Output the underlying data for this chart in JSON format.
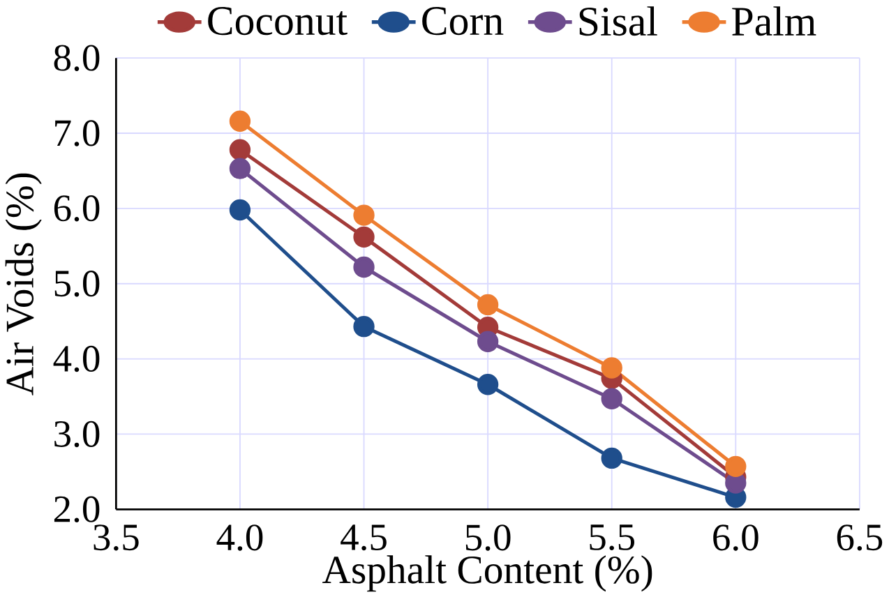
{
  "chart_data": {
    "type": "line",
    "xlabel": "Asphalt Content (%)",
    "ylabel": "Air Voids (%)",
    "x": [
      4.0,
      4.5,
      5.0,
      5.5,
      6.0
    ],
    "series": [
      {
        "name": "Coconut",
        "color": "#a33b39",
        "values": [
          6.78,
          5.62,
          4.42,
          3.74,
          2.43
        ]
      },
      {
        "name": "Corn",
        "color": "#1f4e8c",
        "values": [
          5.98,
          4.43,
          3.66,
          2.68,
          2.16
        ]
      },
      {
        "name": "Sisal",
        "color": "#6e4c8e",
        "values": [
          6.53,
          5.22,
          4.23,
          3.47,
          2.35
        ]
      },
      {
        "name": "Palm",
        "color": "#ed7d31",
        "values": [
          7.16,
          5.91,
          4.72,
          3.88,
          2.57
        ]
      }
    ],
    "xlim": [
      3.5,
      6.5
    ],
    "ylim": [
      2.0,
      8.0
    ],
    "xticks": [
      {
        "value": 3.5,
        "label": "3.5"
      },
      {
        "value": 4.0,
        "label": "4.0"
      },
      {
        "value": 4.5,
        "label": "4.5"
      },
      {
        "value": 5.0,
        "label": "5.0"
      },
      {
        "value": 5.5,
        "label": "5.5"
      },
      {
        "value": 6.0,
        "label": "6.0"
      },
      {
        "value": 6.5,
        "label": "6.5"
      }
    ],
    "yticks": [
      {
        "value": 2.0,
        "label": "2.0"
      },
      {
        "value": 3.0,
        "label": "3.0"
      },
      {
        "value": 4.0,
        "label": "4.0"
      },
      {
        "value": 5.0,
        "label": "5.0"
      },
      {
        "value": 6.0,
        "label": "6.0"
      },
      {
        "value": 7.0,
        "label": "7.0"
      },
      {
        "value": 8.0,
        "label": "8.0"
      }
    ],
    "grid": true,
    "legend": "top",
    "marker": "circle",
    "line_style": "solid"
  }
}
